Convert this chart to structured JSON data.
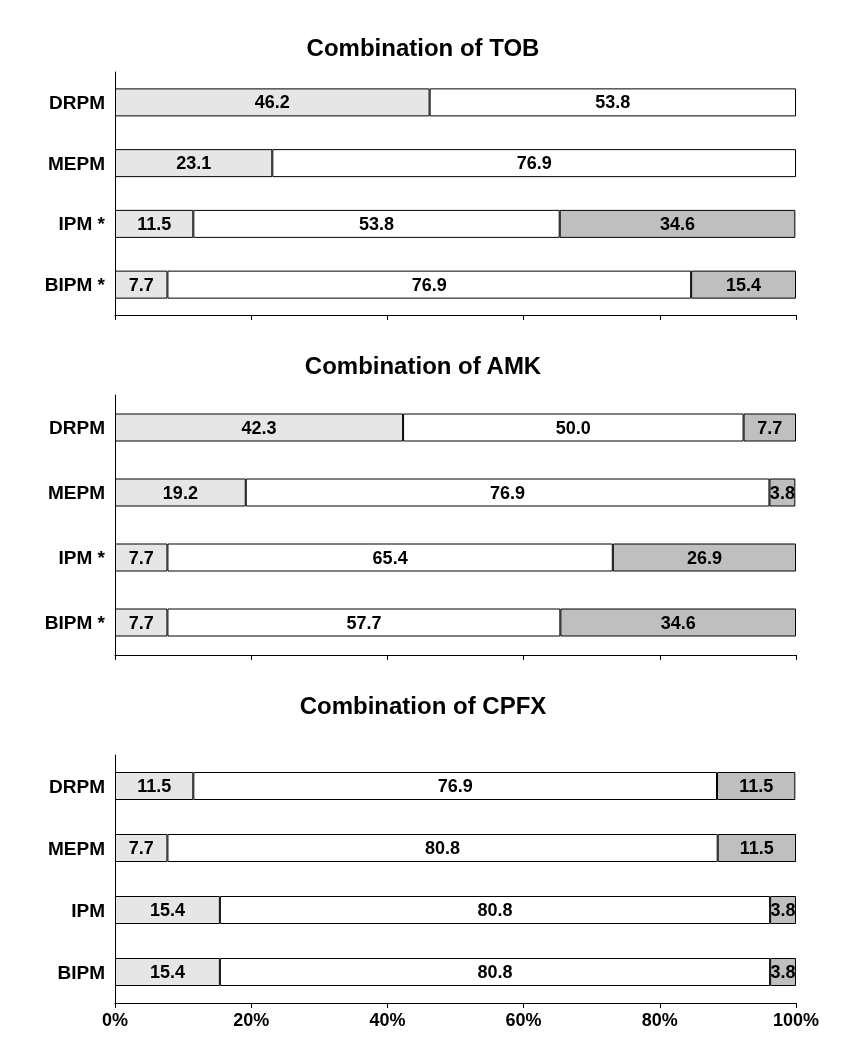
{
  "chart_data": [
    {
      "type": "bar",
      "orientation": "horizontal",
      "stacked": true,
      "title": "Combination of TOB",
      "categories": [
        "DRPM",
        "MEPM",
        "IPM *",
        "BIPM *"
      ],
      "series": [
        {
          "color": "#e6e6e6",
          "values": [
            46.2,
            23.1,
            11.5,
            7.7
          ],
          "value_labels": [
            "46.2",
            "23.1",
            "11.5",
            "7.7"
          ]
        },
        {
          "color": "#ffffff",
          "values": [
            53.8,
            76.9,
            53.8,
            76.9
          ],
          "value_labels": [
            "53.8",
            "76.9",
            "53.8",
            "76.9"
          ]
        },
        {
          "color": "#bfbfbf",
          "values": [
            null,
            null,
            34.6,
            15.4
          ],
          "value_labels": [
            null,
            null,
            "34.6",
            "15.4"
          ]
        }
      ],
      "xlim": [
        0,
        100
      ],
      "xticks": [
        {
          "value": 0,
          "label": null
        },
        {
          "value": 20,
          "label": null
        },
        {
          "value": 40,
          "label": null
        },
        {
          "value": 60,
          "label": null
        },
        {
          "value": 80,
          "label": null
        },
        {
          "value": 100,
          "label": null
        }
      ],
      "grid": false
    },
    {
      "type": "bar",
      "orientation": "horizontal",
      "stacked": true,
      "title": "Combination of AMK",
      "categories": [
        "DRPM",
        "MEPM",
        "IPM *",
        "BIPM *"
      ],
      "series": [
        {
          "color": "#e6e6e6",
          "values": [
            42.3,
            19.2,
            7.7,
            7.7
          ],
          "value_labels": [
            "42.3",
            "19.2",
            "7.7",
            "7.7"
          ]
        },
        {
          "color": "#ffffff",
          "values": [
            50.0,
            76.9,
            65.4,
            57.7
          ],
          "value_labels": [
            "50.0",
            "76.9",
            "65.4",
            "57.7"
          ]
        },
        {
          "color": "#bfbfbf",
          "values": [
            7.7,
            3.8,
            26.9,
            34.6
          ],
          "value_labels": [
            "7.7",
            "3.8",
            "26.9",
            "34.6"
          ]
        }
      ],
      "xlim": [
        0,
        100
      ],
      "xticks": [
        {
          "value": 0,
          "label": null
        },
        {
          "value": 20,
          "label": null
        },
        {
          "value": 40,
          "label": null
        },
        {
          "value": 60,
          "label": null
        },
        {
          "value": 80,
          "label": null
        },
        {
          "value": 100,
          "label": null
        }
      ],
      "grid": false
    },
    {
      "type": "bar",
      "orientation": "horizontal",
      "stacked": true,
      "title": "Combination of CPFX",
      "categories": [
        "DRPM",
        "MEPM",
        "IPM",
        "BIPM"
      ],
      "series": [
        {
          "color": "#e6e6e6",
          "values": [
            11.5,
            7.7,
            15.4,
            15.4
          ],
          "value_labels": [
            "11.5",
            "7.7",
            "15.4",
            "15.4"
          ]
        },
        {
          "color": "#ffffff",
          "values": [
            76.9,
            80.8,
            80.8,
            80.8
          ],
          "value_labels": [
            "76.9",
            "80.8",
            "80.8",
            "80.8"
          ]
        },
        {
          "color": "#bfbfbf",
          "values": [
            11.5,
            11.5,
            3.8,
            3.8
          ],
          "value_labels": [
            "11.5",
            "11.5",
            "3.8",
            "3.8"
          ]
        }
      ],
      "xlim": [
        0,
        100
      ],
      "xticks": [
        {
          "value": 0,
          "label": "0%"
        },
        {
          "value": 20,
          "label": "20%"
        },
        {
          "value": 40,
          "label": "40%"
        },
        {
          "value": 60,
          "label": "60%"
        },
        {
          "value": 80,
          "label": "80%"
        },
        {
          "value": 100,
          "label": "100%"
        }
      ],
      "grid": false
    }
  ]
}
